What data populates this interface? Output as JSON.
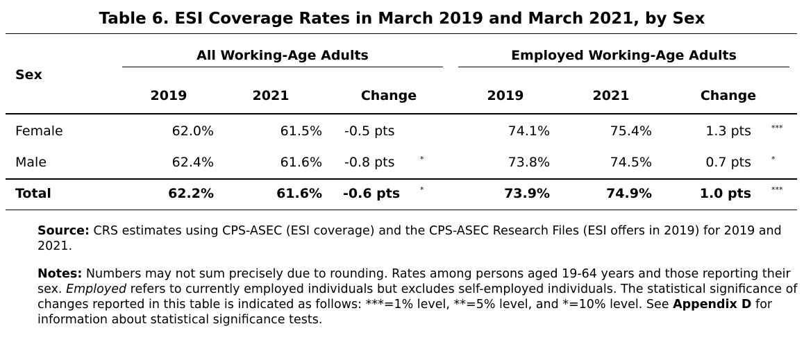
{
  "title": "Table 6. ESI Coverage Rates in March 2019 and March 2021, by Sex",
  "table": {
    "row_header": "Sex",
    "groups": [
      "All Working-Age Adults",
      "Employed Working-Age Adults"
    ],
    "columns": [
      "2019",
      "2021",
      "Change",
      "2019",
      "2021",
      "Change"
    ],
    "rows": [
      {
        "label": "Female",
        "all_2019": "62.0%",
        "all_2021": "61.5%",
        "all_change": "-0.5 pts",
        "all_sig": "",
        "emp_2019": "74.1%",
        "emp_2021": "75.4%",
        "emp_change": "1.3 pts",
        "emp_sig": "***"
      },
      {
        "label": "Male",
        "all_2019": "62.4%",
        "all_2021": "61.6%",
        "all_change": "-0.8 pts",
        "all_sig": "*",
        "emp_2019": "73.8%",
        "emp_2021": "74.5%",
        "emp_change": "0.7 pts",
        "emp_sig": "*"
      }
    ],
    "total": {
      "label": "Total",
      "all_2019": "62.2%",
      "all_2021": "61.6%",
      "all_change": "-0.6 pts",
      "all_sig": "*",
      "emp_2019": "73.9%",
      "emp_2021": "74.9%",
      "emp_change": "1.0 pts",
      "emp_sig": "***"
    }
  },
  "source": {
    "label": "Source:",
    "text": "CRS estimates using CPS-ASEC (ESI coverage) and the CPS-ASEC Research Files (ESI offers in 2019) for 2019 and 2021."
  },
  "notes": {
    "label": "Notes:",
    "text1": "Numbers may not sum precisely due to rounding. Rates among persons aged 19-64 years and those reporting their sex.",
    "emphasis": "Employed",
    "text2": "refers to currently employed individuals but excludes self-employed individuals. The statistical significance of changes reported in this table is indicated as follows: ***=1% level, **=5% level, and *=10% level. See",
    "appendix": "Appendix D",
    "text3": "for information about statistical significance tests."
  }
}
